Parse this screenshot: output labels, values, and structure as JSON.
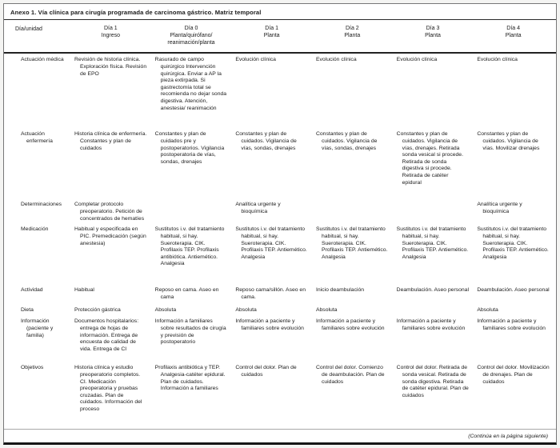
{
  "title": "Anexo 1. Vía clínica para cirugía programada de carcinoma gástrico. Matriz temporal",
  "colors": {
    "ink": "#1a1a1a",
    "paper": "#ffffff"
  },
  "footer": "(Continúa en la página siguiente)",
  "table": {
    "row_header_label": "Día/unidad",
    "columns": [
      {
        "line1": "Día 1",
        "line2": "Ingreso"
      },
      {
        "line1": "Día 0",
        "line2": "Planta/quirófano/ reanimación/planta"
      },
      {
        "line1": "Día 1",
        "line2": "Planta"
      },
      {
        "line1": "Día 2",
        "line2": "Planta"
      },
      {
        "line1": "Día 3",
        "line2": "Planta"
      },
      {
        "line1": "Día 4",
        "line2": "Planta"
      }
    ],
    "rows": [
      {
        "label": "Actuación médica",
        "cells": [
          "Revisión de historia clínica. Exploración física. Revisión de EPO",
          "Rasurado de campo quirúrgico Intervención quirúrgica. Enviar a AP la pieza extirpada. Si gastrectomía total se recomienda no dejar sonda digestiva. Atención, anestesia/ reanimación",
          "Evolución clínica",
          "Evolución clínica",
          "Evolución clínica",
          "Evolución clínica"
        ]
      },
      {
        "label": "Actuación enfermería",
        "cells": [
          "Historia clínica de enfermería. Constantes y plan de cuidados",
          "Constantes y plan de cuidados pre y postoperatorios. Vigilancia postoperatoria de vías, sondas, drenajes",
          "Constantes y plan de cuidados. Vigilancia de vías, sondas, drenajes",
          "Constantes y plan de cuidados. Vigilancia de vías, sondas, drenajes",
          "Constantes y plan de cuidados. Vigilancia de vías, drenajes. Retirada sonda vesical si procede. Retirada de sonda digestiva si procede. Retirada de catéter epidural",
          "Constantes y plan de cuidados. Vigilancia de vías. Movilizar drenajes"
        ]
      },
      {
        "label": "Determinaciones",
        "cells": [
          "Completar protocolo preoperatorio. Petición de concentrados de hematíes",
          "",
          "Analítica urgente y bioquímica",
          "",
          "",
          "Analítica urgente y bioquímica"
        ]
      },
      {
        "label": "Medicación",
        "cells": [
          "Habitual y especificada en PIC. Premedicación (según anestesia)",
          "Sustitutos i.v. del tratamiento habitual, si hay. Sueroterapia. CIK. Profilaxis TEP. Profilaxis antibiótica. Antiemético. Analgesia",
          "Sustitutos i.v. del tratamiento habitual, si hay. Sueroterapia. CIK. Profilaxis TEP. Antiemético. Analgesia",
          "Sustitutos i.v. del tratamiento habitual, si hay. Sueroterapia. CIK. Profilaxis TEP. Antiemético. Analgesia",
          "Sustitutos i.v. del tratamiento habitual, si hay. Sueroterapia. CIK. Profilaxis TEP. Antiemético. Analgesia",
          "Sustitutos i.v. del tratamiento habitual, si hay. Sueroterapia. CIK. Profilaxis TEP. Antiemético. Analgesia"
        ]
      },
      {
        "label": "Actividad",
        "cells": [
          "Habitual",
          "Reposo en cama. Aseo en cama",
          "Reposo cama/sillón. Aseo en cama.",
          "Inicio deambulación",
          "Deambulación. Aseo personal",
          "Deambulación. Aseo personal"
        ]
      },
      {
        "label": "Dieta",
        "cells": [
          "Protección gástrica",
          "Absoluta",
          "Absoluta",
          "Absoluta",
          "",
          "Absoluta"
        ]
      },
      {
        "label": "Información (paciente y familia)",
        "cells": [
          "Documentos hospitalarios: entrega de hojas de información. Entrega de encuesta de calidad de vida. Entrega de CI",
          "Información a familiares sobre resultados de cirugía y previsión de postoperatorio",
          "Información a paciente y familiares sobre evolución",
          "Información a paciente y familiares sobre evolución",
          "Información a paciente y familiares sobre evolución",
          "Información a paciente y familiares sobre evolución"
        ]
      },
      {
        "label": "Objetivos",
        "cells": [
          "Historia clínica y estudio preoperatorio completos. CI. Medicación preoperatoria y pruebas cruzadas. Plan de cuidados. Información del proceso",
          "Profilaxis antibiótica y TEP. Analgesia-catéter epidural. Plan de cuidados. Información a familiares",
          "Control del dolor. Plan de cuidados",
          "Control del dolor. Comienzo de deambulación. Plan de cuidados",
          "Control del dolor. Retirada de sonda vesical. Retirada de sonda digestiva. Retirada de catéter epidural. Plan de cuidados",
          "Control del dolor. Movilización de drenajes. Plan de cuidados"
        ]
      }
    ]
  }
}
